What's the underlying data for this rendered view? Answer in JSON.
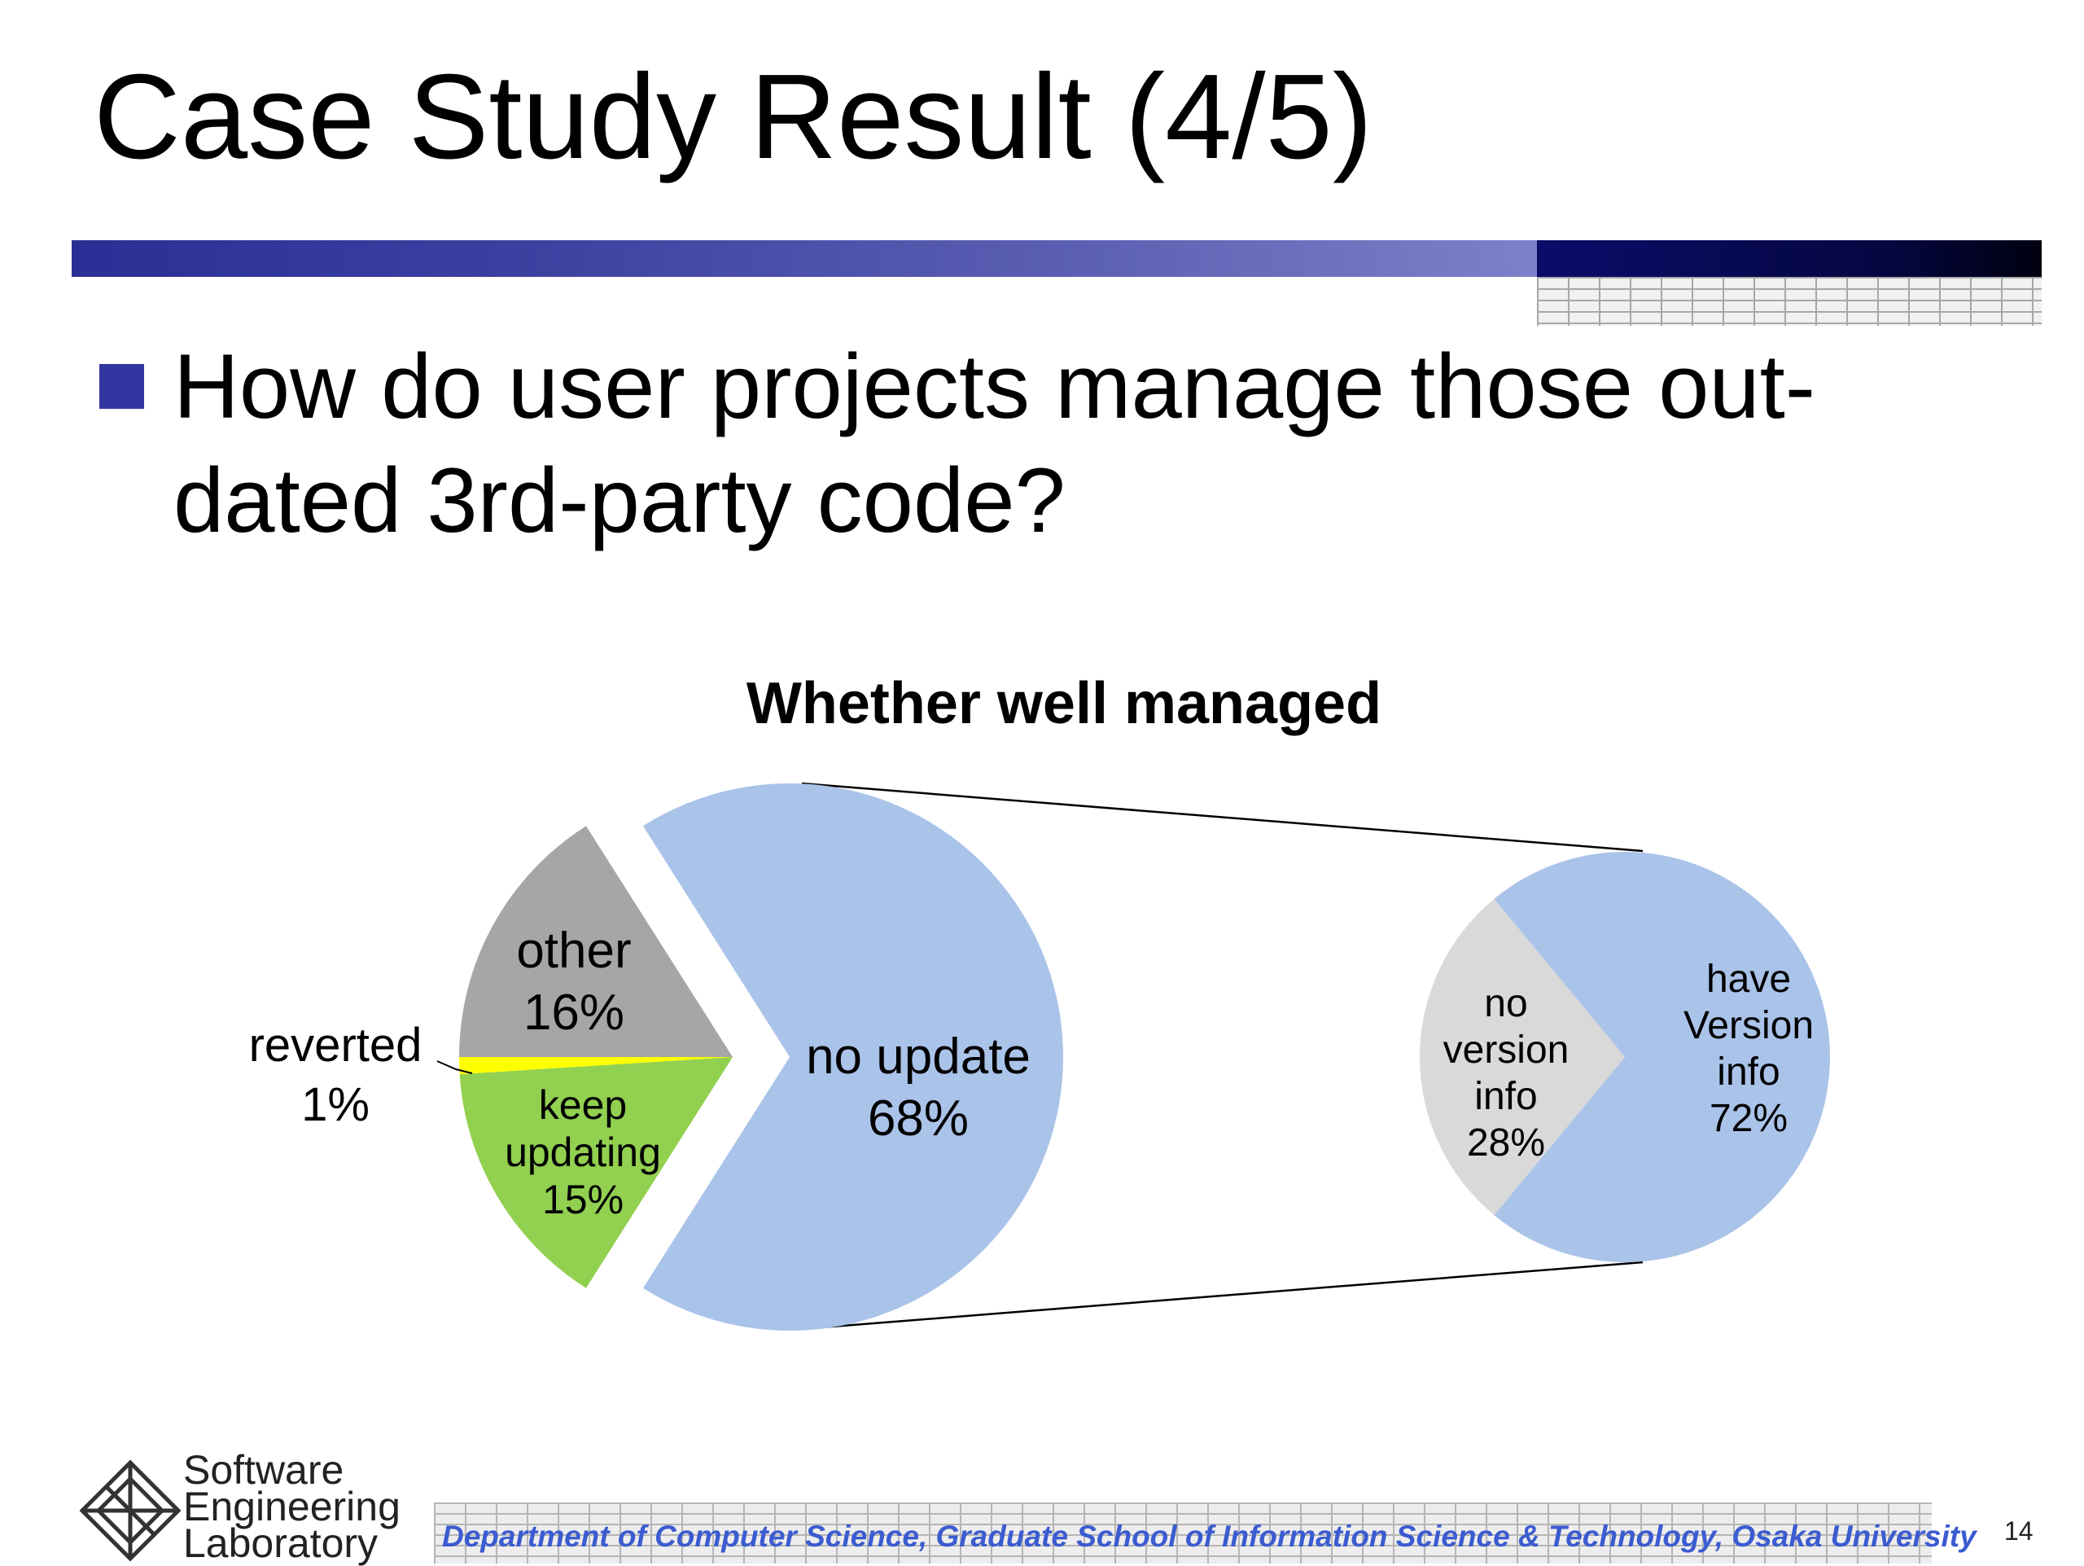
{
  "slide": {
    "title": "Case Study Result (4/5)",
    "bullet": "How do user projects manage those out-dated 3rd-party code?",
    "footer": "Department of Computer Science, Graduate School of Information Science & Technology, Osaka University",
    "page_number": "14",
    "logo_lines": [
      "Software",
      "Engineering",
      "Laboratory"
    ],
    "colors": {
      "accent": "#3336a0",
      "footer_text": "#3b5bd0"
    }
  },
  "chart_data": {
    "type": "pie",
    "title": "Whether well managed",
    "legend": "none",
    "main_pie": {
      "slices": [
        {
          "label": "no update",
          "percent_label": "68%",
          "value": 68,
          "color": "#aac3e9",
          "exploded": true
        },
        {
          "label": "keep updating",
          "percent_label": "15%",
          "value": 15,
          "color": "#92d050",
          "exploded": false
        },
        {
          "label": "reverted",
          "percent_label": "1%",
          "value": 1,
          "color": "#ffff00",
          "exploded": false
        },
        {
          "label": "other",
          "percent_label": "16%",
          "value": 16,
          "color": "#a6a6a6",
          "exploded": false
        }
      ]
    },
    "breakdown_pie": {
      "of_slice": "no update",
      "slices": [
        {
          "label": "have Version info",
          "percent_label": "72%",
          "value": 72,
          "color": "#aac3e9"
        },
        {
          "label": "no version info",
          "percent_label": "28%",
          "value": 28,
          "color": "#d9d9d9"
        }
      ]
    }
  }
}
